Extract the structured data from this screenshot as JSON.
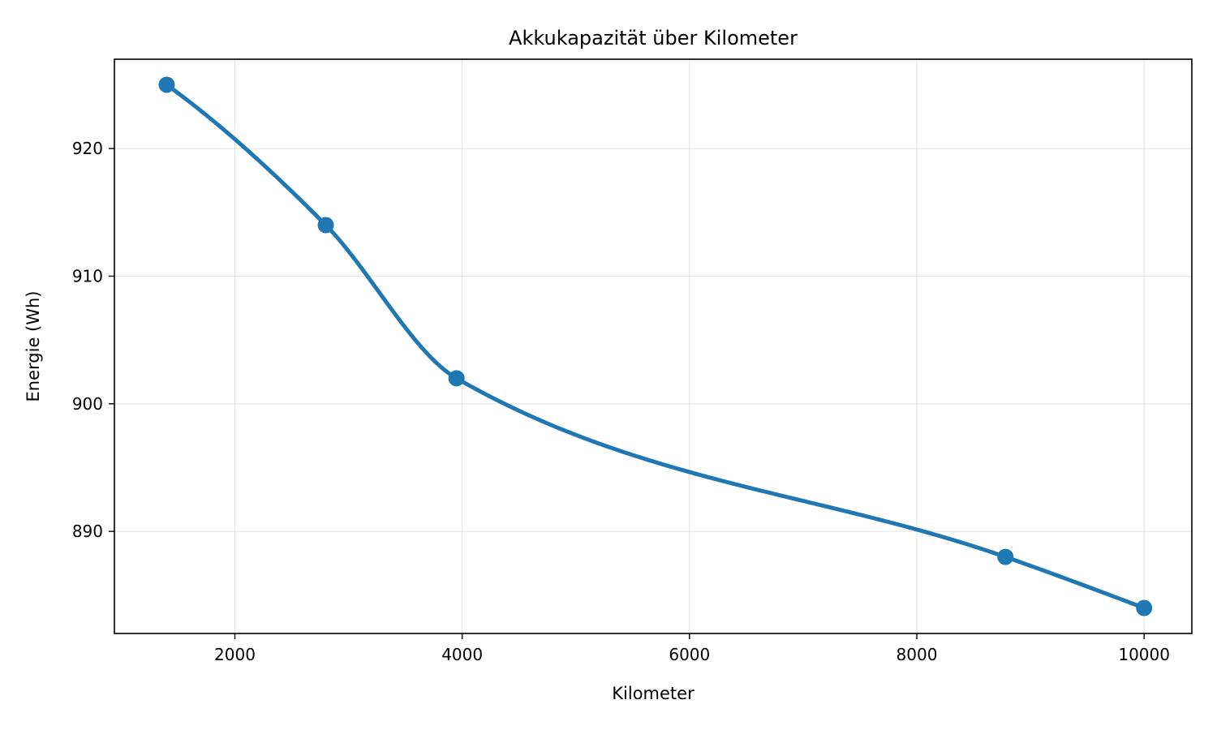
{
  "chart_data": {
    "type": "line",
    "title": "Akkukapazität über Kilometer",
    "xlabel": "Kilometer",
    "ylabel": "Energie (Wh)",
    "xlim": [
      940,
      10420
    ],
    "ylim": [
      882,
      927
    ],
    "xticks": [
      2000,
      4000,
      6000,
      8000,
      10000
    ],
    "yticks": [
      890,
      900,
      910,
      920
    ],
    "grid": true,
    "series": [
      {
        "color": "#1f77b4",
        "smooth": true,
        "x": [
          1400,
          2800,
          3950,
          8780,
          10000
        ],
        "y": [
          925,
          914,
          902,
          888,
          884
        ]
      }
    ]
  }
}
